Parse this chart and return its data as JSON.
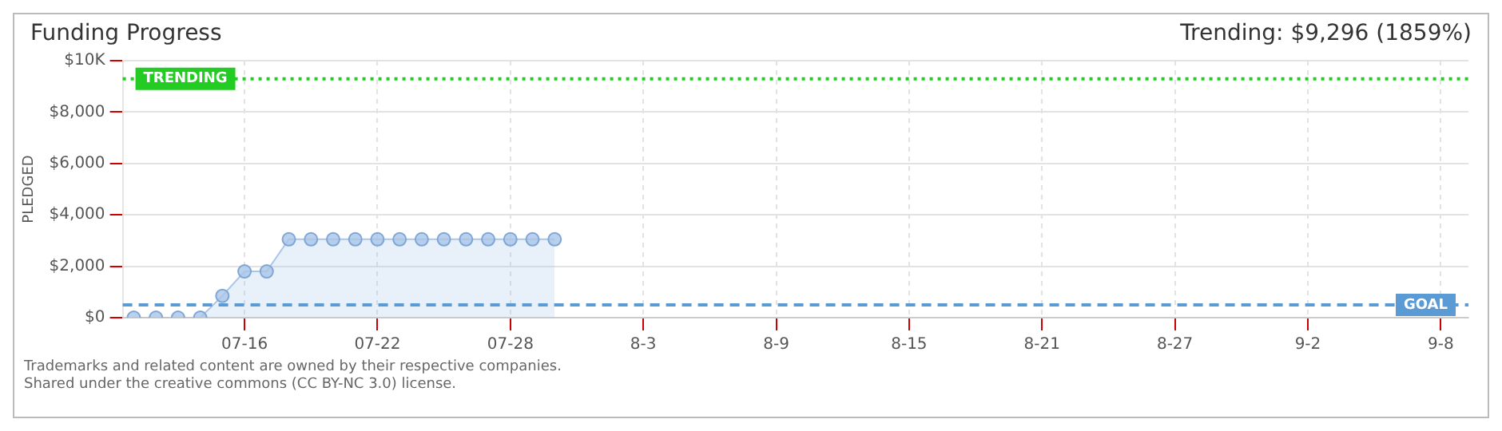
{
  "chart_data": {
    "type": "area",
    "title": "Funding Progress",
    "subtitle": "Trending: $9,296 (1859%)",
    "ylabel": "PLEDGED",
    "x": [
      "--07-11",
      "--07-12",
      "--07-13",
      "--07-14",
      "--07-15",
      "--07-16",
      "--07-17",
      "--07-18",
      "--07-19",
      "--07-20",
      "--07-21",
      "--07-22",
      "--07-23",
      "--07-24",
      "--07-25",
      "--07-26",
      "--07-27",
      "--07-28",
      "--07-29",
      "--07-30"
    ],
    "series": [
      {
        "color": "#a9c6e8",
        "values": [
          0,
          0,
          0,
          0,
          850,
          1800,
          1800,
          3050,
          3050,
          3050,
          3050,
          3050,
          3050,
          3050,
          3050,
          3050,
          3050,
          3050,
          3050,
          3050
        ]
      }
    ],
    "xlim": [
      "--07-10T12:00",
      "--09-09T06:00"
    ],
    "xticks": [
      {
        "value": "--07-16",
        "label": "07-16"
      },
      {
        "value": "--07-22",
        "label": "07-22"
      },
      {
        "value": "--07-28",
        "label": "07-28"
      },
      {
        "value": "--08-03",
        "label": "8-3"
      },
      {
        "value": "--08-09",
        "label": "8-9"
      },
      {
        "value": "--08-15",
        "label": "8-15"
      },
      {
        "value": "--08-21",
        "label": "8-21"
      },
      {
        "value": "--08-27",
        "label": "8-27"
      },
      {
        "value": "--09-02",
        "label": "9-2"
      },
      {
        "value": "--09-08",
        "label": "9-8"
      }
    ],
    "ylim": [
      0,
      10000
    ],
    "yticks": [
      {
        "value": 0,
        "label": "$0"
      },
      {
        "value": 2000,
        "label": "$2,000"
      },
      {
        "value": 4000,
        "label": "$4,000"
      },
      {
        "value": 6000,
        "label": "$6,000"
      },
      {
        "value": 8000,
        "label": "$8,000"
      },
      {
        "value": 10000,
        "label": "$10K"
      }
    ],
    "grid": true,
    "marker": "circle",
    "ref_lines": [
      {
        "axis": "y",
        "value": 9296,
        "label": "TRENDING",
        "color": "#22cc22",
        "line_style": "dotted"
      },
      {
        "axis": "y",
        "value": 500,
        "label": "GOAL",
        "color": "#5b9bd5",
        "line_style": "dashed"
      }
    ],
    "annotations": [
      "Trademarks and related content are owned by their respective companies.",
      "Shared under the creative commons (CC BY-NC 3.0) license."
    ]
  }
}
